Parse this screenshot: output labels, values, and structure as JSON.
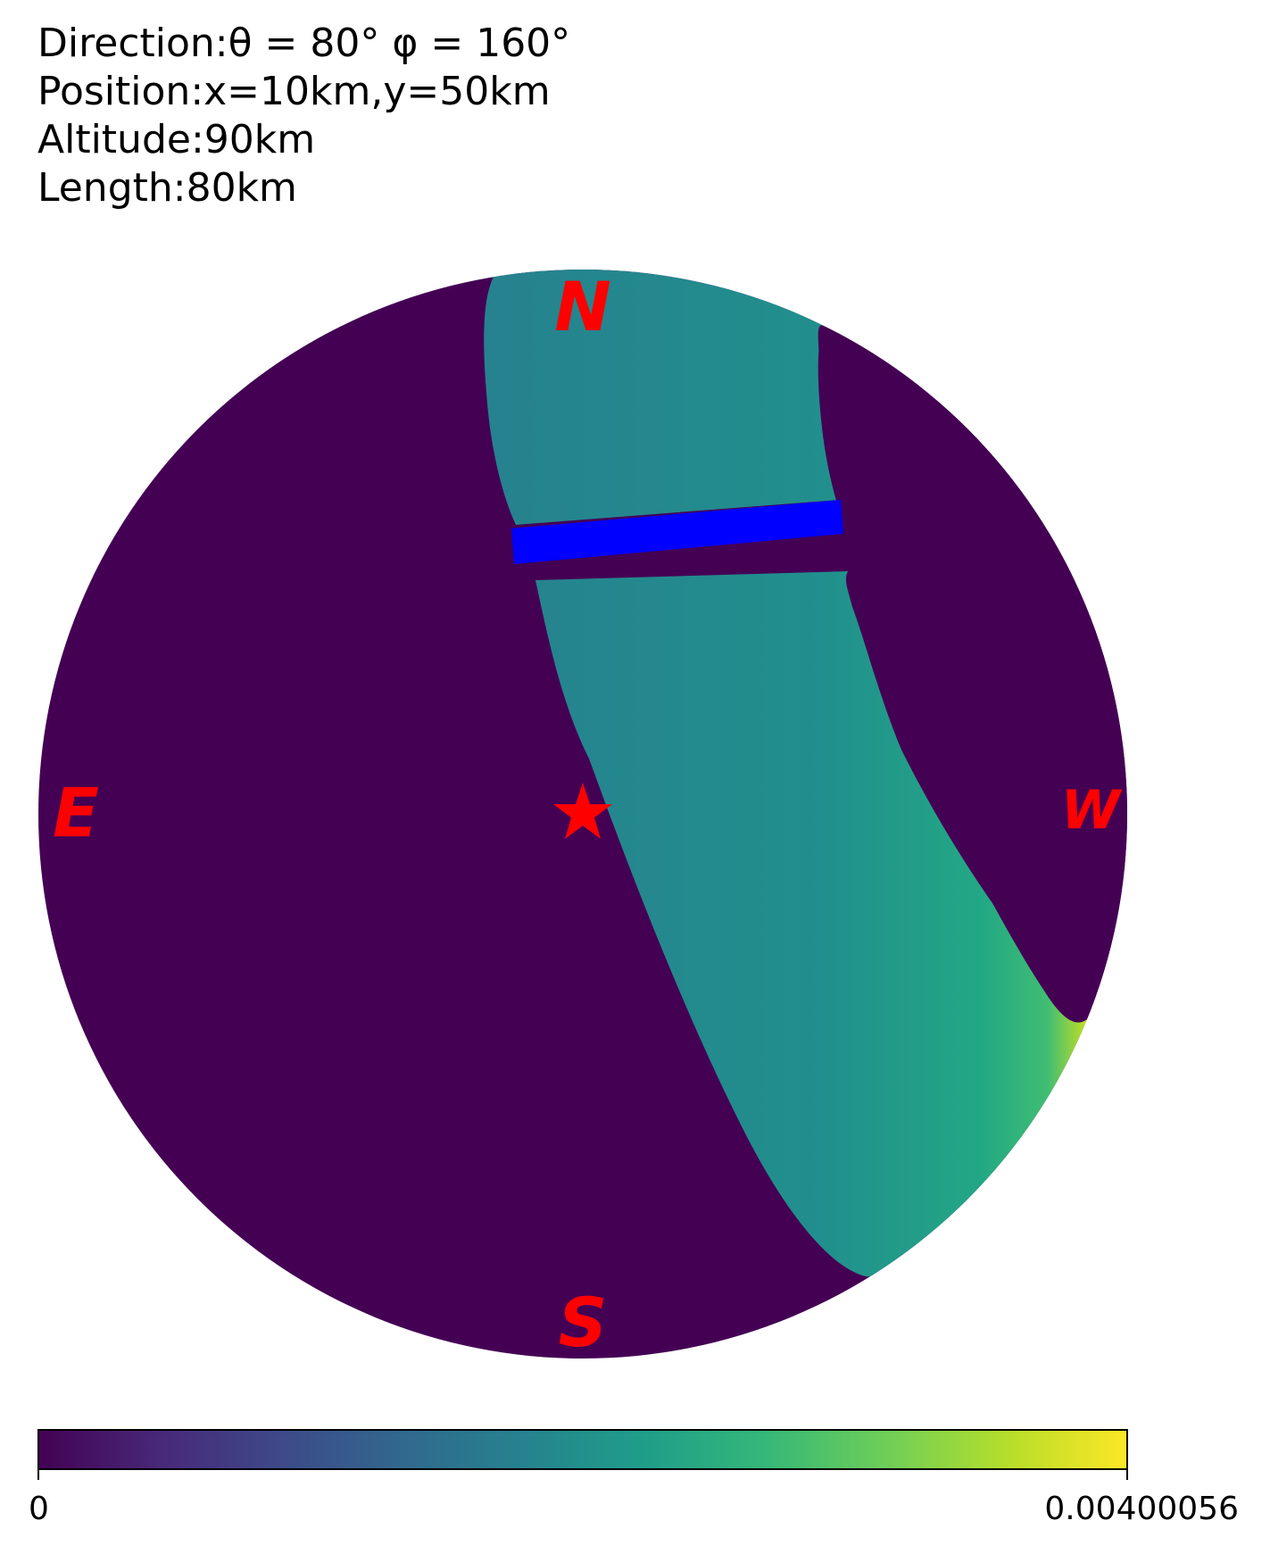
{
  "info": {
    "direction": "Direction:θ = 80° φ = 160°",
    "position": "Position:x=10km,y=50km",
    "altitude": "Altitude:90km",
    "length": "Length:80km"
  },
  "compass": {
    "north": "N",
    "south": "S",
    "east": "E",
    "west": "W"
  },
  "center_marker": "star-icon",
  "colorbar": {
    "colormap": "viridis",
    "min_label": "0",
    "max_label": "0.00400056",
    "stops": [
      "#440154",
      "#482878",
      "#3e4989",
      "#31688e",
      "#26828e",
      "#1f9e89",
      "#35b779",
      "#6ece58",
      "#b5de2b",
      "#fde725"
    ]
  },
  "colors": {
    "background_disk": "#440154",
    "band": "#26828e",
    "band_edge": "#2bb07f",
    "band_hot": "#c8e020",
    "bar": "#0000ff",
    "labels": "#ff0000"
  }
}
